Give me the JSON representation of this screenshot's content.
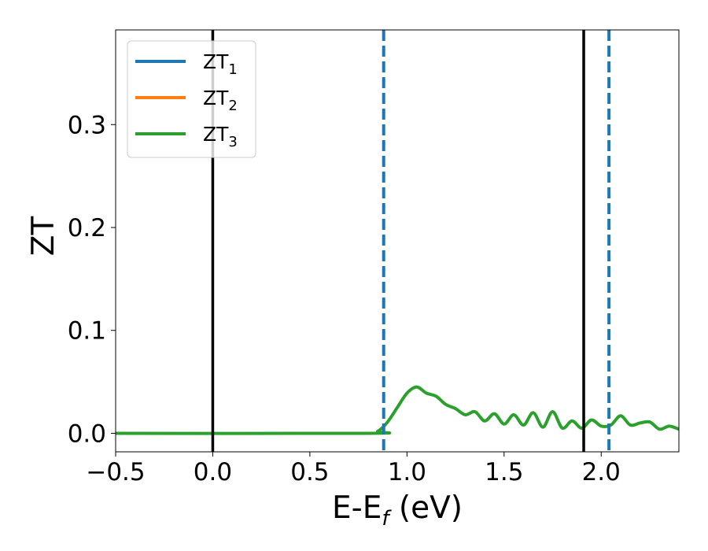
{
  "chart_data": {
    "type": "line",
    "title": "",
    "xlabel": {
      "main": "E-E",
      "subscript": "f",
      "unit": " (eV)"
    },
    "ylabel": "ZT",
    "xlim": [
      -0.5,
      2.4
    ],
    "ylim": [
      -0.018,
      0.392
    ],
    "xticks": [
      -0.5,
      0.0,
      0.5,
      1.0,
      1.5,
      2.0
    ],
    "xtick_labels": [
      "−0.5",
      "0.0",
      "0.5",
      "1.0",
      "1.5",
      "2.0"
    ],
    "yticks": [
      0.0,
      0.1,
      0.2,
      0.3
    ],
    "ytick_labels": [
      "0.0",
      "0.1",
      "0.2",
      "0.3"
    ],
    "grid": false,
    "legend_position": "top-left",
    "series": [
      {
        "name": "ZT1",
        "name_main": "ZT",
        "name_sub": "1",
        "color": "#1f77b4",
        "x": [],
        "y": []
      },
      {
        "name": "ZT2",
        "name_main": "ZT",
        "name_sub": "2",
        "color": "#ff7f0e",
        "x": [],
        "y": []
      },
      {
        "name": "ZT3",
        "name_main": "ZT",
        "name_sub": "3",
        "color": "#2ca02c",
        "x": [
          -0.5,
          0.8,
          0.85,
          0.9,
          0.95,
          1.0,
          1.05,
          1.1,
          1.15,
          1.2,
          1.25,
          1.3,
          1.35,
          1.4,
          1.45,
          1.5,
          1.55,
          1.6,
          1.65,
          1.7,
          1.75,
          1.8,
          1.85,
          1.9,
          1.95,
          2.0,
          2.05,
          2.1,
          2.15,
          2.2,
          2.25,
          2.3,
          2.35,
          2.4
        ],
        "y": [
          0.0,
          0.0,
          0.002,
          0.011,
          0.025,
          0.039,
          0.045,
          0.039,
          0.036,
          0.028,
          0.024,
          0.018,
          0.021,
          0.012,
          0.019,
          0.009,
          0.018,
          0.008,
          0.02,
          0.006,
          0.021,
          0.005,
          0.012,
          0.005,
          0.013,
          0.007,
          0.008,
          0.017,
          0.008,
          0.01,
          0.011,
          0.004,
          0.007,
          0.004
        ]
      }
    ],
    "vlines": [
      {
        "x": 0.0,
        "color": "#000000",
        "style": "solid"
      },
      {
        "x": 0.88,
        "color": "#1f77b4",
        "style": "dashed"
      },
      {
        "x": 1.91,
        "color": "#000000",
        "style": "solid"
      },
      {
        "x": 2.04,
        "color": "#1f77b4",
        "style": "dashed"
      }
    ]
  }
}
